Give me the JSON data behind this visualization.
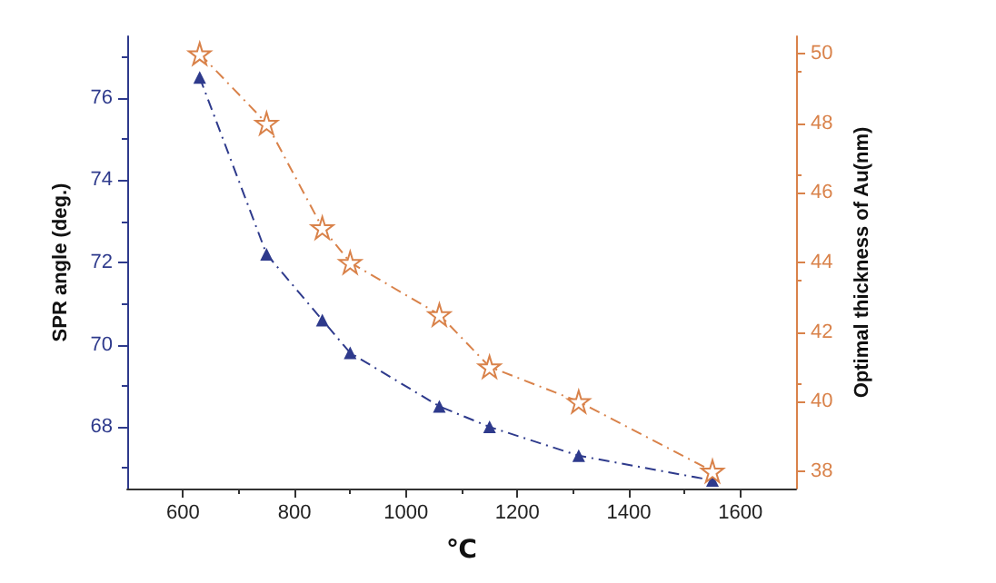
{
  "chart_data": {
    "type": "line",
    "xlabel": "℃",
    "ylabel": "SPR angle (deg.)",
    "y2label": "Optimal thickness of Au(nm)",
    "xlim": [
      500,
      1700
    ],
    "xticks": [
      600,
      800,
      1000,
      1200,
      1400,
      1600
    ],
    "ylim": [
      66.5,
      77.5
    ],
    "yticks": [
      68,
      70,
      72,
      74,
      76
    ],
    "y2lim": [
      37.5,
      50.5
    ],
    "y2ticks": [
      38,
      40,
      42,
      44,
      46,
      48,
      50
    ],
    "x": [
      630,
      750,
      850,
      900,
      1060,
      1150,
      1310,
      1550
    ],
    "series": [
      {
        "color": "#2e3a8c",
        "marker": "triangle",
        "values": [
          76.5,
          72.2,
          70.6,
          69.8,
          68.5,
          68.0,
          67.3,
          66.7
        ]
      },
      {
        "color": "#d9824a",
        "marker": "star",
        "axis": "y2",
        "values": [
          50,
          48,
          45,
          44,
          42.5,
          41,
          40,
          38
        ]
      }
    ],
    "line_style": "dashed",
    "grid": false
  }
}
